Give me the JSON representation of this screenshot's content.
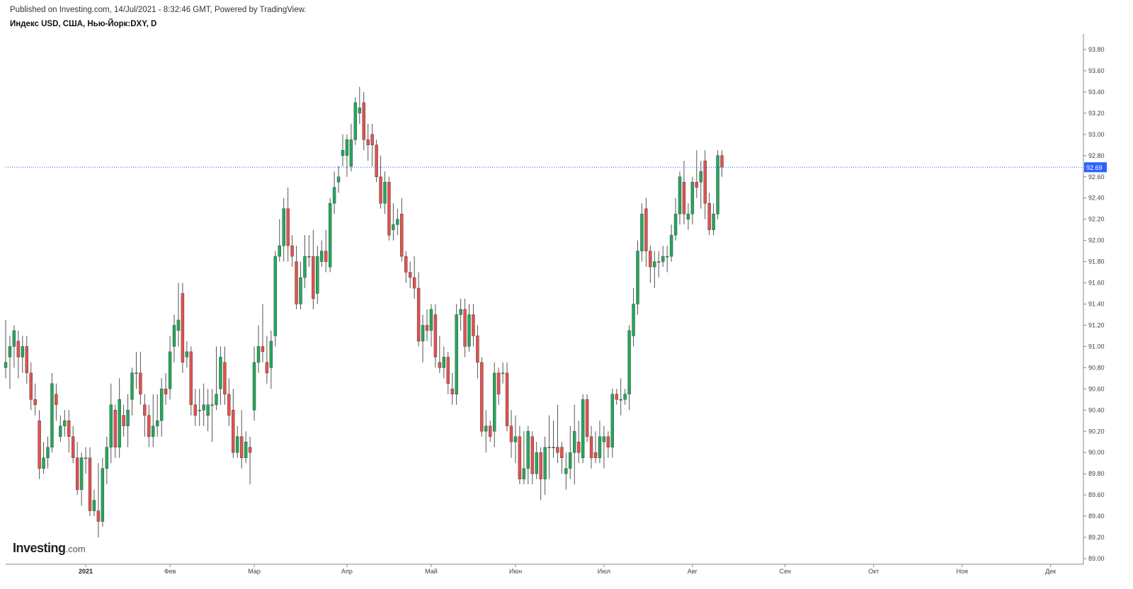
{
  "header": {
    "published": "Published on Investing.com, 14/Jul/2021 - 8:32:46 GMT, Powered by TradingView.",
    "symbol": "Индекс USD, США, Нью-Йорк:DXY, D"
  },
  "logo": {
    "main": "Investing",
    "suffix": ".com"
  },
  "colors": {
    "up": "#26a65b",
    "down": "#e0524f",
    "wick": "#555555",
    "axis": "#444444",
    "price_line": "#2962ff",
    "last_badge": "#2962ff"
  },
  "chart_data": {
    "type": "candlestick",
    "title": "Индекс USD, США, Нью-Йорк:DXY, D",
    "ylim": [
      89.0,
      93.8
    ],
    "y_ticks": [
      "93.80",
      "93.60",
      "93.40",
      "93.20",
      "93.00",
      "92.80",
      "92.60",
      "92.40",
      "92.20",
      "92.00",
      "91.80",
      "91.60",
      "91.40",
      "91.20",
      "91.00",
      "90.80",
      "90.60",
      "90.40",
      "90.20",
      "90.00",
      "89.80",
      "89.60",
      "89.40",
      "89.20",
      "89.00"
    ],
    "x_labels": [
      {
        "label": "2021",
        "bold": true,
        "index": 19
      },
      {
        "label": "Фев",
        "index": 39
      },
      {
        "label": "Мар",
        "index": 59
      },
      {
        "label": "Апр",
        "index": 81
      },
      {
        "label": "Май",
        "index": 101
      },
      {
        "label": "Июн",
        "index": 121
      },
      {
        "label": "Июл",
        "index": 142
      },
      {
        "label": "Авг",
        "index": 163
      },
      {
        "label": "Сен",
        "index": 185
      },
      {
        "label": "Окт",
        "index": 206
      },
      {
        "label": "Ноя",
        "index": 227
      },
      {
        "label": "Дек",
        "index": 248
      }
    ],
    "last_price": "92.69",
    "candles": [
      [
        90.8,
        90.85,
        90.7,
        91.25
      ],
      [
        90.9,
        91.0,
        90.6,
        91.1
      ],
      [
        91.0,
        91.15,
        90.8,
        91.2
      ],
      [
        91.05,
        90.9,
        90.7,
        91.15
      ],
      [
        90.9,
        91.0,
        90.75,
        91.1
      ],
      [
        91.0,
        90.75,
        90.65,
        91.1
      ],
      [
        90.75,
        90.5,
        90.4,
        90.85
      ],
      [
        90.5,
        90.45,
        90.35,
        90.65
      ],
      [
        90.3,
        89.85,
        89.75,
        90.4
      ],
      [
        89.85,
        89.95,
        89.8,
        90.1
      ],
      [
        89.95,
        90.05,
        89.85,
        90.15
      ],
      [
        90.05,
        90.65,
        90.0,
        90.75
      ],
      [
        90.55,
        90.45,
        90.3,
        90.65
      ],
      [
        90.15,
        90.25,
        90.1,
        90.35
      ],
      [
        90.25,
        90.3,
        90.15,
        90.4
      ],
      [
        90.3,
        90.15,
        90.0,
        90.4
      ],
      [
        90.15,
        89.95,
        89.9,
        90.25
      ],
      [
        89.95,
        89.65,
        89.6,
        90.1
      ],
      [
        89.65,
        89.95,
        89.5,
        90.0
      ],
      [
        89.95,
        89.95,
        89.8,
        90.05
      ],
      [
        89.95,
        89.45,
        89.4,
        90.05
      ],
      [
        89.45,
        89.55,
        89.4,
        89.65
      ],
      [
        89.45,
        89.35,
        89.2,
        89.9
      ],
      [
        89.35,
        89.85,
        89.3,
        89.95
      ],
      [
        89.85,
        90.05,
        89.7,
        90.15
      ],
      [
        90.05,
        90.45,
        89.9,
        90.65
      ],
      [
        90.4,
        90.05,
        89.95,
        90.45
      ],
      [
        90.05,
        90.5,
        89.95,
        90.7
      ],
      [
        90.35,
        90.25,
        90.15,
        90.45
      ],
      [
        90.25,
        90.4,
        90.05,
        90.55
      ],
      [
        90.5,
        90.75,
        90.35,
        90.8
      ],
      [
        90.75,
        90.75,
        90.6,
        90.95
      ],
      [
        90.75,
        90.55,
        90.45,
        90.95
      ],
      [
        90.45,
        90.35,
        90.15,
        90.55
      ],
      [
        90.35,
        90.15,
        90.05,
        90.45
      ],
      [
        90.15,
        90.25,
        90.05,
        90.55
      ],
      [
        90.25,
        90.3,
        90.15,
        90.55
      ],
      [
        90.3,
        90.6,
        90.15,
        90.7
      ],
      [
        90.6,
        90.55,
        90.45,
        90.75
      ],
      [
        90.6,
        90.95,
        90.5,
        91.1
      ],
      [
        91.0,
        91.2,
        90.85,
        91.3
      ],
      [
        91.15,
        91.25,
        91.0,
        91.6
      ],
      [
        91.5,
        90.85,
        90.75,
        91.6
      ],
      [
        90.9,
        90.95,
        90.8,
        91.05
      ],
      [
        90.95,
        90.45,
        90.35,
        91.0
      ],
      [
        90.45,
        90.35,
        90.25,
        90.6
      ],
      [
        90.4,
        90.4,
        90.25,
        90.6
      ],
      [
        90.4,
        90.45,
        90.25,
        90.65
      ],
      [
        90.35,
        90.45,
        90.2,
        90.6
      ],
      [
        90.45,
        90.45,
        90.1,
        90.6
      ],
      [
        90.45,
        90.55,
        90.4,
        91.0
      ],
      [
        90.6,
        90.9,
        90.45,
        91.0
      ],
      [
        90.85,
        90.55,
        90.45,
        91.0
      ],
      [
        90.55,
        90.35,
        90.25,
        90.7
      ],
      [
        90.4,
        90.0,
        89.95,
        90.6
      ],
      [
        90.0,
        90.15,
        89.95,
        90.25
      ],
      [
        90.15,
        89.95,
        89.85,
        90.4
      ],
      [
        89.95,
        90.1,
        89.9,
        90.2
      ],
      [
        90.05,
        90.0,
        89.7,
        90.15
      ],
      [
        90.4,
        90.85,
        90.3,
        91.0
      ],
      [
        90.85,
        91.0,
        90.75,
        91.2
      ],
      [
        91.0,
        90.95,
        90.85,
        91.4
      ],
      [
        90.85,
        90.75,
        90.65,
        91.1
      ],
      [
        90.8,
        91.05,
        90.6,
        91.15
      ],
      [
        91.1,
        91.85,
        91.0,
        91.9
      ],
      [
        91.85,
        91.95,
        91.8,
        92.2
      ],
      [
        91.95,
        92.3,
        91.8,
        92.4
      ],
      [
        92.3,
        91.95,
        91.8,
        92.5
      ],
      [
        91.95,
        91.85,
        91.75,
        92.05
      ],
      [
        91.8,
        91.4,
        91.35,
        91.95
      ],
      [
        91.4,
        91.65,
        91.35,
        91.8
      ],
      [
        91.65,
        91.85,
        91.55,
        92.05
      ],
      [
        91.85,
        91.85,
        91.75,
        92.05
      ],
      [
        91.85,
        91.45,
        91.35,
        92.1
      ],
      [
        91.5,
        91.85,
        91.4,
        91.95
      ],
      [
        91.8,
        91.9,
        91.75,
        92.0
      ],
      [
        91.9,
        91.8,
        91.7,
        92.1
      ],
      [
        91.75,
        92.35,
        91.7,
        92.4
      ],
      [
        92.35,
        92.5,
        92.25,
        92.65
      ],
      [
        92.55,
        92.6,
        92.45,
        92.7
      ],
      [
        92.8,
        92.85,
        92.7,
        93.0
      ],
      [
        92.8,
        92.95,
        92.6,
        93.0
      ],
      [
        92.7,
        92.95,
        92.65,
        93.1
      ],
      [
        92.95,
        93.3,
        92.9,
        93.35
      ],
      [
        93.2,
        93.25,
        93.1,
        93.45
      ],
      [
        93.3,
        92.95,
        92.85,
        93.4
      ],
      [
        92.95,
        92.9,
        92.75,
        93.1
      ],
      [
        93.0,
        92.9,
        92.7,
        93.1
      ],
      [
        92.9,
        92.6,
        92.55,
        92.95
      ],
      [
        92.6,
        92.35,
        92.3,
        92.8
      ],
      [
        92.35,
        92.55,
        92.25,
        92.65
      ],
      [
        92.55,
        92.05,
        92.0,
        92.6
      ],
      [
        92.1,
        92.15,
        92.0,
        92.35
      ],
      [
        92.15,
        92.2,
        92.05,
        92.3
      ],
      [
        92.25,
        91.85,
        91.8,
        92.4
      ],
      [
        91.85,
        91.7,
        91.6,
        91.9
      ],
      [
        91.7,
        91.65,
        91.55,
        91.8
      ],
      [
        91.65,
        91.55,
        91.45,
        91.85
      ],
      [
        91.55,
        91.05,
        91.0,
        91.7
      ],
      [
        91.05,
        91.2,
        90.85,
        91.3
      ],
      [
        91.2,
        91.15,
        91.05,
        91.35
      ],
      [
        91.15,
        91.35,
        91.0,
        91.4
      ],
      [
        91.3,
        90.9,
        90.8,
        91.4
      ],
      [
        90.85,
        90.8,
        90.75,
        91.1
      ],
      [
        90.8,
        90.9,
        90.7,
        91.0
      ],
      [
        90.9,
        90.65,
        90.55,
        90.95
      ],
      [
        90.6,
        90.55,
        90.45,
        90.75
      ],
      [
        90.55,
        91.3,
        90.45,
        91.4
      ],
      [
        91.3,
        91.35,
        91.15,
        91.45
      ],
      [
        91.35,
        91.0,
        90.9,
        91.45
      ],
      [
        91.0,
        91.3,
        90.95,
        91.4
      ],
      [
        91.3,
        91.1,
        91.0,
        91.4
      ],
      [
        91.1,
        90.85,
        90.7,
        91.2
      ],
      [
        90.85,
        90.2,
        90.15,
        90.9
      ],
      [
        90.2,
        90.25,
        90.0,
        90.4
      ],
      [
        90.25,
        90.15,
        90.1,
        90.3
      ],
      [
        90.2,
        90.75,
        90.05,
        90.85
      ],
      [
        90.75,
        90.55,
        90.45,
        90.8
      ],
      [
        90.75,
        90.75,
        90.65,
        90.85
      ],
      [
        90.75,
        90.25,
        90.2,
        90.85
      ],
      [
        90.25,
        90.1,
        89.95,
        90.4
      ],
      [
        90.1,
        90.15,
        89.9,
        90.35
      ],
      [
        90.15,
        89.75,
        89.7,
        90.25
      ],
      [
        89.75,
        89.85,
        89.7,
        90.2
      ],
      [
        89.85,
        90.2,
        89.7,
        90.25
      ],
      [
        90.15,
        89.8,
        89.7,
        90.2
      ],
      [
        89.8,
        90.0,
        89.75,
        90.1
      ],
      [
        90.0,
        89.75,
        89.55,
        90.05
      ],
      [
        89.75,
        90.05,
        89.6,
        90.15
      ],
      [
        90.05,
        90.05,
        89.75,
        90.35
      ],
      [
        90.05,
        90.05,
        89.95,
        90.3
      ],
      [
        90.05,
        90.0,
        89.9,
        90.45
      ],
      [
        90.05,
        89.95,
        89.8,
        90.1
      ],
      [
        89.8,
        89.85,
        89.65,
        90.0
      ],
      [
        89.85,
        90.0,
        89.75,
        90.25
      ],
      [
        90.0,
        90.2,
        89.7,
        90.45
      ],
      [
        90.1,
        90.0,
        89.9,
        90.3
      ],
      [
        89.95,
        90.5,
        89.9,
        90.55
      ],
      [
        90.5,
        90.15,
        90.1,
        90.55
      ],
      [
        90.15,
        89.95,
        89.85,
        90.25
      ],
      [
        90.0,
        89.95,
        89.9,
        90.2
      ],
      [
        89.95,
        90.15,
        89.9,
        90.3
      ],
      [
        90.1,
        90.15,
        89.85,
        90.25
      ],
      [
        90.15,
        90.05,
        89.95,
        90.2
      ],
      [
        90.05,
        90.55,
        89.95,
        90.6
      ],
      [
        90.55,
        90.5,
        90.45,
        90.6
      ],
      [
        90.5,
        90.5,
        90.35,
        90.7
      ],
      [
        90.5,
        90.55,
        90.45,
        90.6
      ],
      [
        90.55,
        91.15,
        90.4,
        91.2
      ],
      [
        91.1,
        91.4,
        91.0,
        91.55
      ],
      [
        91.4,
        91.9,
        91.3,
        92.0
      ],
      [
        91.9,
        92.25,
        91.8,
        92.35
      ],
      [
        92.3,
        91.9,
        91.75,
        92.4
      ],
      [
        91.9,
        91.75,
        91.6,
        91.95
      ],
      [
        91.75,
        91.8,
        91.55,
        91.9
      ],
      [
        91.8,
        91.8,
        91.65,
        91.9
      ],
      [
        91.8,
        91.85,
        91.75,
        91.95
      ],
      [
        91.85,
        91.85,
        91.7,
        91.95
      ],
      [
        91.85,
        92.05,
        91.8,
        92.15
      ],
      [
        92.05,
        92.25,
        92.0,
        92.4
      ],
      [
        92.25,
        92.6,
        92.15,
        92.65
      ],
      [
        92.55,
        92.25,
        92.15,
        92.75
      ],
      [
        92.2,
        92.25,
        92.1,
        92.35
      ],
      [
        92.25,
        92.55,
        92.15,
        92.6
      ],
      [
        92.55,
        92.5,
        92.4,
        92.85
      ],
      [
        92.55,
        92.65,
        92.3,
        92.75
      ],
      [
        92.75,
        92.35,
        92.2,
        92.85
      ],
      [
        92.35,
        92.1,
        92.05,
        92.45
      ],
      [
        92.1,
        92.25,
        92.05,
        92.35
      ],
      [
        92.25,
        92.8,
        92.2,
        92.85
      ],
      [
        92.8,
        92.69,
        92.6,
        92.85
      ]
    ]
  }
}
